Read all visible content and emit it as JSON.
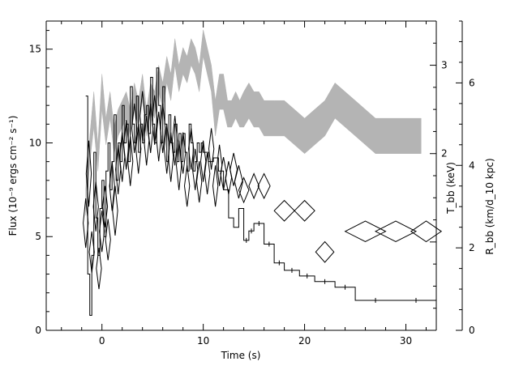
{
  "chart_data": {
    "type": "line",
    "x_axis": {
      "label": "Time (s)",
      "range": [
        -5.5,
        33
      ],
      "ticks": [
        0,
        10,
        20,
        30
      ],
      "tick_labels": [
        "0",
        "10",
        "20",
        "30"
      ]
    },
    "y_left": {
      "label": "Flux (10⁻⁹ ergs cm⁻² s⁻¹)",
      "range": [
        0,
        16.5
      ],
      "ticks": [
        0,
        5,
        10,
        15
      ],
      "tick_labels": [
        "0",
        "5",
        "10",
        "15"
      ]
    },
    "y_right_temperature": {
      "label": "T_bb (keV)",
      "range": [
        0,
        3.5
      ],
      "ticks": [
        2,
        3
      ],
      "tick_labels": [
        "2",
        "3"
      ]
    },
    "y_right_radius": {
      "label": "R_bb (km/d_10 kpc)",
      "range": [
        0,
        7.5
      ],
      "ticks": [
        0,
        2,
        4,
        6
      ],
      "tick_labels": [
        "0",
        "2",
        "4",
        "6"
      ]
    },
    "series": [
      {
        "name": "",
        "role": "flux",
        "style": "step",
        "color": "#000000",
        "x": [
          -1.6,
          -1.4,
          -1.2,
          -1.0,
          -0.8,
          -0.6,
          -0.4,
          -0.2,
          0,
          0.2,
          0.4,
          0.6,
          0.8,
          1.0,
          1.2,
          1.4,
          1.6,
          1.8,
          2.0,
          2.2,
          2.4,
          2.6,
          2.8,
          3.0,
          3.2,
          3.4,
          3.6,
          3.8,
          4.0,
          4.2,
          4.4,
          4.6,
          4.8,
          5.0,
          5.2,
          5.4,
          5.6,
          5.8,
          6.0,
          6.2,
          6.4,
          6.6,
          6.8,
          7.0,
          7.2,
          7.4,
          7.6,
          7.8,
          8.0,
          8.2,
          8.4,
          8.6,
          8.8,
          9.0,
          9.2,
          9.4,
          9.6,
          9.8,
          10.0,
          10.5,
          11.0,
          11.5,
          12.0,
          12.5,
          13.0,
          13.5,
          14.0,
          14.5,
          15.0,
          16.0,
          17.0,
          18.0,
          19.5,
          21.0,
          23.0,
          25.0,
          29.0
        ],
        "values": [
          12.5,
          3.0,
          0.8,
          4.0,
          9.5,
          6.0,
          4.0,
          6.5,
          8.0,
          5.0,
          8.5,
          10.0,
          7.5,
          9.0,
          11.5,
          8.0,
          10.0,
          9.0,
          12.0,
          10.0,
          11.0,
          9.0,
          13.0,
          11.0,
          10.0,
          12.5,
          9.5,
          11.0,
          10.0,
          11.5,
          12.0,
          10.5,
          13.5,
          11.0,
          10.0,
          14.0,
          12.0,
          10.0,
          13.0,
          11.0,
          9.0,
          11.5,
          10.0,
          9.5,
          11.0,
          9.0,
          10.5,
          9.0,
          10.5,
          9.5,
          8.5,
          11.0,
          10.0,
          8.5,
          9.0,
          10.0,
          9.5,
          10.0,
          9.5,
          9.0,
          9.2,
          8.5,
          7.5,
          6.0,
          5.5,
          6.5,
          4.8,
          5.3,
          5.7,
          4.6,
          3.6,
          3.2,
          2.9,
          2.6,
          2.3,
          1.6,
          1.6
        ]
      },
      {
        "name": "",
        "role": "temperature",
        "style": "band",
        "color": "#b4b4b4",
        "x": [
          -1.6,
          -1.2,
          -0.8,
          -0.4,
          0,
          0.4,
          0.8,
          1.2,
          1.6,
          2.0,
          2.4,
          2.8,
          3.2,
          3.6,
          4.0,
          4.4,
          4.8,
          5.2,
          5.6,
          6.0,
          6.4,
          6.8,
          7.2,
          7.6,
          8.0,
          8.4,
          8.8,
          9.2,
          9.6,
          10.0,
          10.4,
          10.8,
          11.2,
          11.6,
          12.0,
          12.4,
          12.8,
          13.2,
          13.6,
          14.0,
          14.5,
          15.0,
          15.5,
          16.0,
          17.0,
          18.0,
          19.0,
          20.0,
          21.0,
          22.0,
          23.0,
          24.0,
          25.0,
          26.0,
          27.0,
          29.0,
          31.5
        ],
        "upper": [
          1.6,
          2.2,
          2.7,
          2.1,
          2.9,
          2.4,
          2.7,
          2.3,
          2.5,
          2.6,
          2.7,
          2.5,
          2.8,
          2.6,
          2.9,
          2.5,
          2.8,
          2.7,
          3.0,
          2.8,
          3.1,
          2.9,
          3.3,
          3.0,
          3.2,
          3.1,
          3.3,
          3.2,
          3.0,
          3.4,
          3.2,
          3.0,
          2.6,
          2.9,
          2.9,
          2.6,
          2.6,
          2.7,
          2.6,
          2.7,
          2.8,
          2.7,
          2.7,
          2.6,
          2.6,
          2.6,
          2.5,
          2.4,
          2.5,
          2.6,
          2.8,
          2.7,
          2.6,
          2.5,
          2.4,
          2.4,
          2.4
        ],
        "lower": [
          1.3,
          1.9,
          2.3,
          1.8,
          2.5,
          2.1,
          2.4,
          2.0,
          2.2,
          2.3,
          2.4,
          2.2,
          2.5,
          2.3,
          2.6,
          2.2,
          2.5,
          2.4,
          2.7,
          2.5,
          2.8,
          2.6,
          3.0,
          2.7,
          2.9,
          2.8,
          3.0,
          2.9,
          2.7,
          3.1,
          2.9,
          2.7,
          2.2,
          2.5,
          2.5,
          2.3,
          2.3,
          2.4,
          2.3,
          2.3,
          2.4,
          2.3,
          2.3,
          2.2,
          2.2,
          2.2,
          2.1,
          2.0,
          2.1,
          2.2,
          2.4,
          2.3,
          2.2,
          2.1,
          2.0,
          2.0,
          2.0
        ]
      },
      {
        "name": "",
        "role": "radius",
        "style": "diamonds",
        "color": "#000000",
        "x": [
          -1.6,
          -1.3,
          -1.0,
          -0.6,
          -0.3,
          0,
          0.3,
          0.6,
          1.0,
          1.3,
          1.6,
          2.0,
          2.4,
          2.8,
          3.2,
          3.6,
          4.0,
          4.4,
          4.8,
          5.2,
          5.6,
          6.0,
          6.4,
          6.8,
          7.2,
          7.6,
          8.0,
          8.4,
          8.8,
          9.2,
          9.6,
          10.0,
          10.4,
          10.8,
          11.2,
          11.6,
          12.0,
          12.5,
          13.0,
          13.5,
          14.0,
          15.0,
          16.0,
          18.0,
          20.0,
          22.0,
          26.0,
          29.0,
          32.0
        ],
        "values": [
          2.6,
          3.8,
          1.9,
          3.0,
          1.5,
          2.4,
          3.0,
          2.2,
          3.5,
          2.9,
          3.9,
          4.2,
          4.5,
          4.1,
          4.9,
          4.4,
          5.2,
          4.6,
          4.9,
          5.1,
          4.7,
          4.9,
          4.4,
          4.2,
          4.6,
          4.0,
          4.3,
          3.5,
          4.4,
          3.9,
          3.6,
          4.1,
          3.8,
          4.4,
          3.5,
          4.0,
          3.8,
          3.7,
          3.9,
          3.6,
          3.4,
          3.5,
          3.5,
          2.9,
          2.9,
          1.9,
          2.4,
          2.4,
          2.4
        ],
        "x_halfwidth": [
          0.25,
          0.25,
          0.25,
          0.25,
          0.25,
          0.25,
          0.25,
          0.25,
          0.25,
          0.25,
          0.25,
          0.25,
          0.25,
          0.25,
          0.25,
          0.25,
          0.25,
          0.25,
          0.25,
          0.25,
          0.25,
          0.25,
          0.25,
          0.25,
          0.25,
          0.25,
          0.25,
          0.25,
          0.25,
          0.25,
          0.25,
          0.25,
          0.25,
          0.25,
          0.25,
          0.25,
          0.3,
          0.3,
          0.35,
          0.4,
          0.5,
          0.5,
          0.6,
          1.0,
          1.0,
          0.9,
          2.0,
          2.0,
          1.5
        ],
        "y_halfwidth": [
          0.6,
          0.8,
          0.5,
          0.6,
          0.5,
          0.5,
          0.5,
          0.5,
          0.6,
          0.6,
          0.6,
          0.6,
          0.6,
          0.6,
          0.6,
          0.6,
          0.6,
          0.6,
          0.6,
          0.6,
          0.6,
          0.6,
          0.6,
          0.6,
          0.6,
          0.6,
          0.5,
          0.5,
          0.5,
          0.5,
          0.5,
          0.5,
          0.5,
          0.5,
          0.5,
          0.5,
          0.4,
          0.4,
          0.4,
          0.4,
          0.3,
          0.3,
          0.3,
          0.25,
          0.25,
          0.25,
          0.25,
          0.25,
          0.25
        ]
      }
    ]
  }
}
